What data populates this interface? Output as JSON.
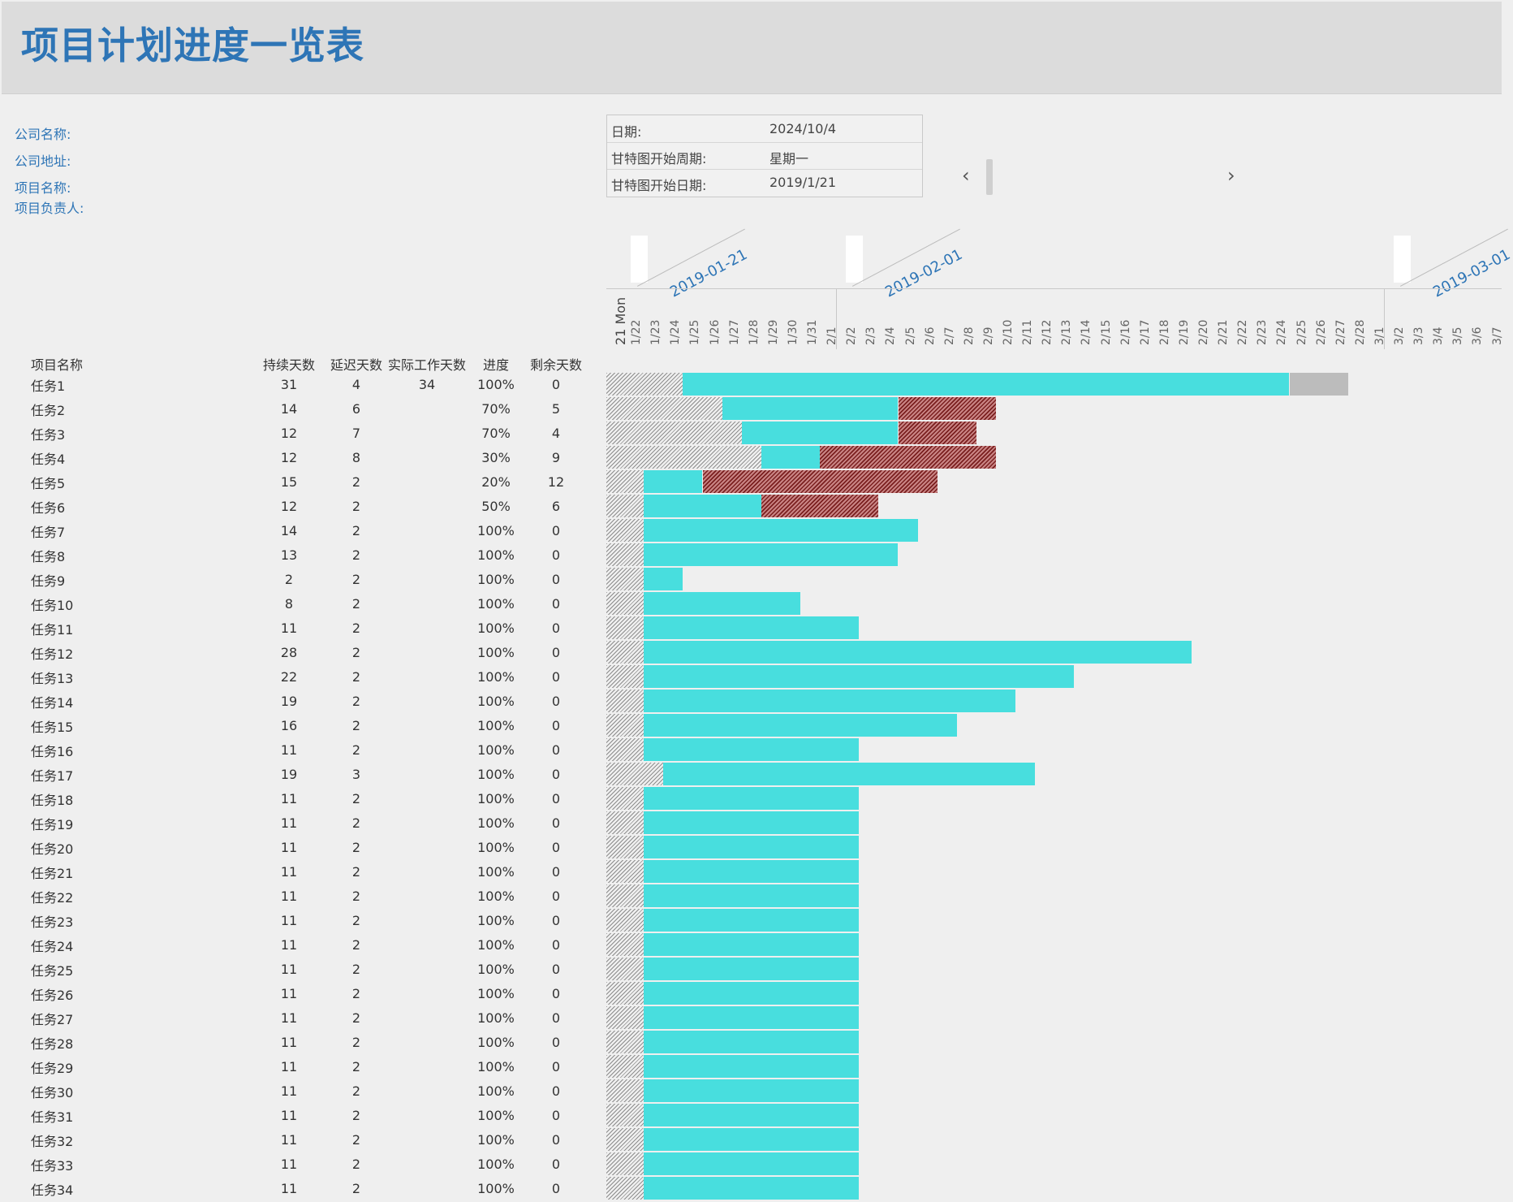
{
  "title": "项目计划进度一览表",
  "company": {
    "name_label": "公司名称:",
    "address_label": "公司地址:",
    "project_label": "项目名称:",
    "owner_label": "项目负责人:"
  },
  "info": {
    "date_label": "日期:",
    "date_value": "2024/10/4",
    "week_start_label": "甘特图开始周期:",
    "week_start_value": "星期一",
    "start_date_label": "甘特图开始日期:",
    "start_date_value": "2019/1/21"
  },
  "nav": {
    "prev": "‹",
    "next": "›"
  },
  "columns": {
    "name": "项目名称",
    "duration": "持续天数",
    "delay": "延迟天数",
    "actual": "实际工作天数",
    "progress": "进度",
    "remaining": "剩余天数"
  },
  "timeline": {
    "first_label": "21 Mon",
    "months": [
      "2019-01-21",
      "2019-02-01",
      "2019-03-01"
    ],
    "day_labels": [
      "1/22",
      "1/23",
      "1/24",
      "1/25",
      "1/26",
      "1/27",
      "1/28",
      "1/29",
      "1/30",
      "1/31",
      "2/1",
      "2/2",
      "2/3",
      "2/4",
      "2/5",
      "2/6",
      "2/7",
      "2/8",
      "2/9",
      "2/10",
      "2/11",
      "2/12",
      "2/13",
      "2/14",
      "2/15",
      "2/16",
      "2/17",
      "2/18",
      "2/19",
      "2/20",
      "2/21",
      "2/22",
      "2/23",
      "2/24",
      "2/25",
      "2/26",
      "2/27",
      "2/28",
      "3/1",
      "3/2",
      "3/3",
      "3/4",
      "3/5",
      "3/6",
      "3/7"
    ]
  },
  "colors": {
    "done": "#48dede",
    "late": "#8b2a2a",
    "extra": "#bcbcbc",
    "title": "#2e75b6"
  },
  "chart_data": {
    "type": "gantt",
    "start_date": "2019-01-21",
    "tasks": [
      {
        "name": "任务1",
        "duration": 31,
        "delay": 4,
        "actual": 34,
        "progress": "100%",
        "remaining": 0
      },
      {
        "name": "任务2",
        "duration": 14,
        "delay": 6,
        "actual": "",
        "progress": "70%",
        "remaining": 5
      },
      {
        "name": "任务3",
        "duration": 12,
        "delay": 7,
        "actual": "",
        "progress": "70%",
        "remaining": 4
      },
      {
        "name": "任务4",
        "duration": 12,
        "delay": 8,
        "actual": "",
        "progress": "30%",
        "remaining": 9
      },
      {
        "name": "任务5",
        "duration": 15,
        "delay": 2,
        "actual": "",
        "progress": "20%",
        "remaining": 12
      },
      {
        "name": "任务6",
        "duration": 12,
        "delay": 2,
        "actual": "",
        "progress": "50%",
        "remaining": 6
      },
      {
        "name": "任务7",
        "duration": 14,
        "delay": 2,
        "actual": "",
        "progress": "100%",
        "remaining": 0
      },
      {
        "name": "任务8",
        "duration": 13,
        "delay": 2,
        "actual": "",
        "progress": "100%",
        "remaining": 0
      },
      {
        "name": "任务9",
        "duration": 2,
        "delay": 2,
        "actual": "",
        "progress": "100%",
        "remaining": 0
      },
      {
        "name": "任务10",
        "duration": 8,
        "delay": 2,
        "actual": "",
        "progress": "100%",
        "remaining": 0
      },
      {
        "name": "任务11",
        "duration": 11,
        "delay": 2,
        "actual": "",
        "progress": "100%",
        "remaining": 0
      },
      {
        "name": "任务12",
        "duration": 28,
        "delay": 2,
        "actual": "",
        "progress": "100%",
        "remaining": 0
      },
      {
        "name": "任务13",
        "duration": 22,
        "delay": 2,
        "actual": "",
        "progress": "100%",
        "remaining": 0
      },
      {
        "name": "任务14",
        "duration": 19,
        "delay": 2,
        "actual": "",
        "progress": "100%",
        "remaining": 0
      },
      {
        "name": "任务15",
        "duration": 16,
        "delay": 2,
        "actual": "",
        "progress": "100%",
        "remaining": 0
      },
      {
        "name": "任务16",
        "duration": 11,
        "delay": 2,
        "actual": "",
        "progress": "100%",
        "remaining": 0
      },
      {
        "name": "任务17",
        "duration": 19,
        "delay": 3,
        "actual": "",
        "progress": "100%",
        "remaining": 0
      },
      {
        "name": "任务18",
        "duration": 11,
        "delay": 2,
        "actual": "",
        "progress": "100%",
        "remaining": 0
      },
      {
        "name": "任务19",
        "duration": 11,
        "delay": 2,
        "actual": "",
        "progress": "100%",
        "remaining": 0
      },
      {
        "name": "任务20",
        "duration": 11,
        "delay": 2,
        "actual": "",
        "progress": "100%",
        "remaining": 0
      },
      {
        "name": "任务21",
        "duration": 11,
        "delay": 2,
        "actual": "",
        "progress": "100%",
        "remaining": 0
      },
      {
        "name": "任务22",
        "duration": 11,
        "delay": 2,
        "actual": "",
        "progress": "100%",
        "remaining": 0
      },
      {
        "name": "任务23",
        "duration": 11,
        "delay": 2,
        "actual": "",
        "progress": "100%",
        "remaining": 0
      },
      {
        "name": "任务24",
        "duration": 11,
        "delay": 2,
        "actual": "",
        "progress": "100%",
        "remaining": 0
      },
      {
        "name": "任务25",
        "duration": 11,
        "delay": 2,
        "actual": "",
        "progress": "100%",
        "remaining": 0
      },
      {
        "name": "任务26",
        "duration": 11,
        "delay": 2,
        "actual": "",
        "progress": "100%",
        "remaining": 0
      },
      {
        "name": "任务27",
        "duration": 11,
        "delay": 2,
        "actual": "",
        "progress": "100%",
        "remaining": 0
      },
      {
        "name": "任务28",
        "duration": 11,
        "delay": 2,
        "actual": "",
        "progress": "100%",
        "remaining": 0
      },
      {
        "name": "任务29",
        "duration": 11,
        "delay": 2,
        "actual": "",
        "progress": "100%",
        "remaining": 0
      },
      {
        "name": "任务30",
        "duration": 11,
        "delay": 2,
        "actual": "",
        "progress": "100%",
        "remaining": 0
      },
      {
        "name": "任务31",
        "duration": 11,
        "delay": 2,
        "actual": "",
        "progress": "100%",
        "remaining": 0
      },
      {
        "name": "任务32",
        "duration": 11,
        "delay": 2,
        "actual": "",
        "progress": "100%",
        "remaining": 0
      },
      {
        "name": "任务33",
        "duration": 11,
        "delay": 2,
        "actual": "",
        "progress": "100%",
        "remaining": 0
      },
      {
        "name": "任务34",
        "duration": 11,
        "delay": 2,
        "actual": "",
        "progress": "100%",
        "remaining": 0
      }
    ]
  }
}
